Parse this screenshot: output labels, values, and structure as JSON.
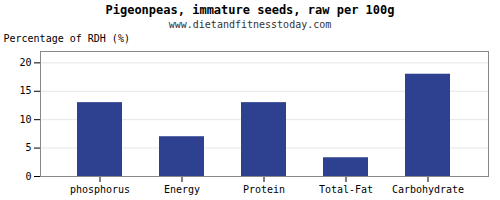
{
  "chart_data": {
    "type": "bar",
    "title": "Pigeonpeas, immature seeds, raw per 100g",
    "subtitle": "www.dietandfitnesstoday.com",
    "categories": [
      "phosphorus",
      "Energy",
      "Protein",
      "Total-Fat",
      "Carbohydrate"
    ],
    "values": [
      13,
      7,
      13,
      3.3,
      18
    ],
    "color": "#2e4090",
    "ylabel": "Percentage of RDH (%)",
    "ylim": [
      0,
      22
    ],
    "yticks": [
      0,
      5,
      10,
      15,
      20
    ],
    "grid": true
  }
}
